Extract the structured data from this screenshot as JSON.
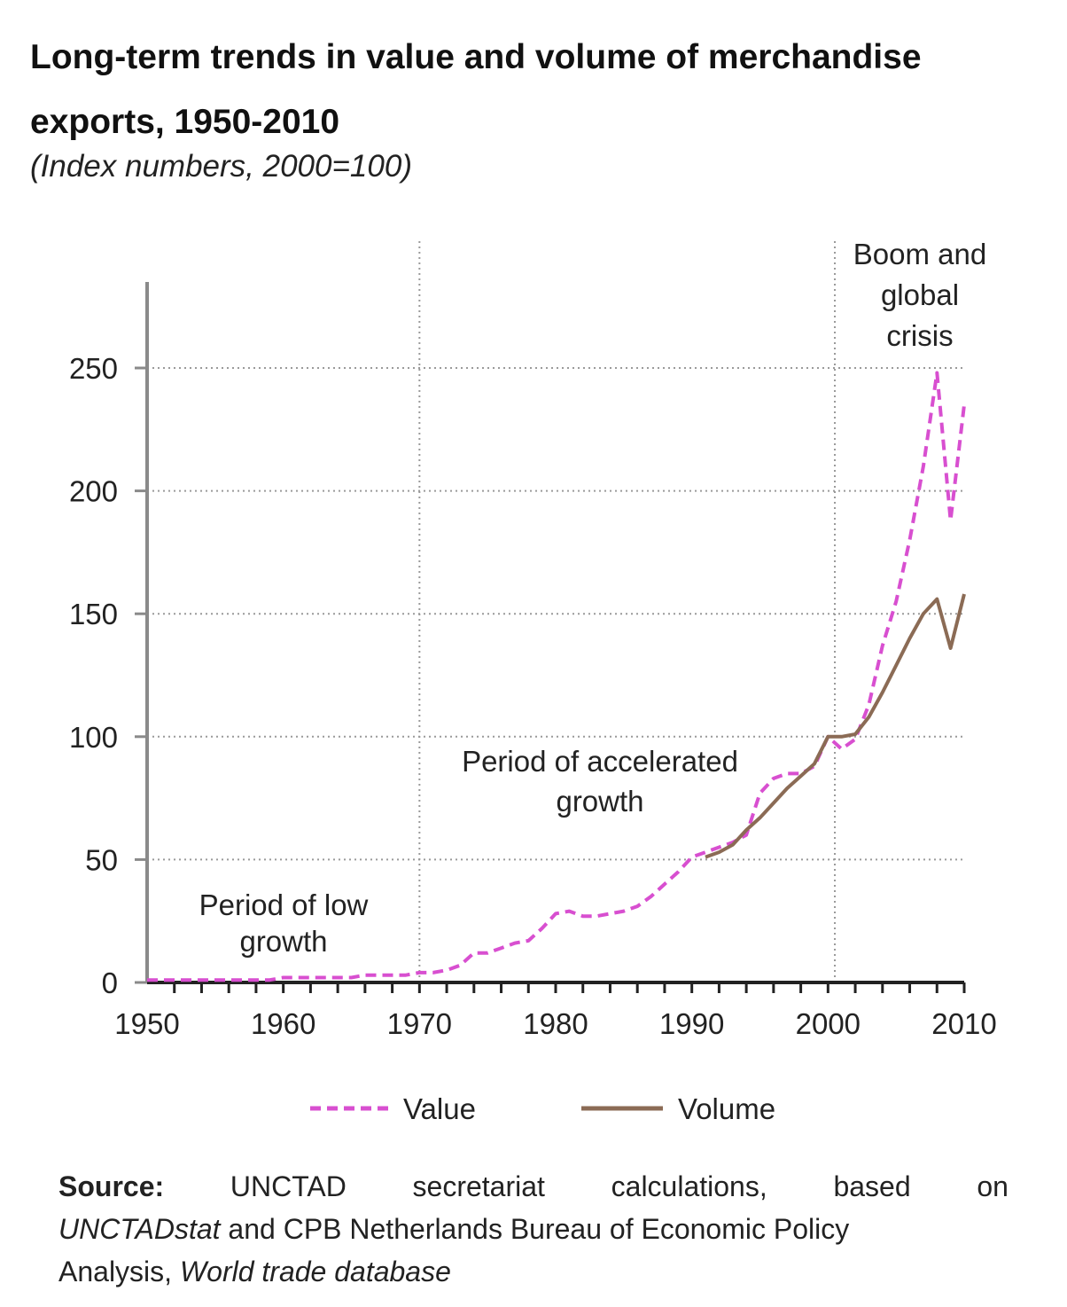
{
  "chart_data": {
    "type": "line",
    "title": "Long-term trends in value and volume of merchandise exports, 1950-2010",
    "subtitle": "(Index numbers, 2000=100)",
    "xlim": [
      1950,
      2010
    ],
    "ylim": [
      0,
      285
    ],
    "x_ticks": [
      1950,
      1960,
      1970,
      1980,
      1990,
      2000,
      2010
    ],
    "y_ticks": [
      0,
      50,
      100,
      150,
      200,
      250
    ],
    "grid": "horizontal dotted",
    "period_dividers": [
      1970,
      2000.5
    ],
    "legend_position": "bottom",
    "annotations": [
      {
        "text_lines": [
          "Period of low",
          "growth"
        ]
      },
      {
        "text_lines": [
          "Period of accelerated",
          "growth"
        ]
      },
      {
        "text_lines": [
          "Boom and",
          "global",
          "crisis"
        ]
      }
    ],
    "series": [
      {
        "name": "Value",
        "style": "dashed",
        "color": "#d84fd0",
        "x": [
          1950,
          1951,
          1952,
          1953,
          1954,
          1955,
          1956,
          1957,
          1958,
          1959,
          1960,
          1961,
          1962,
          1963,
          1964,
          1965,
          1966,
          1967,
          1968,
          1969,
          1970,
          1971,
          1972,
          1973,
          1974,
          1975,
          1976,
          1977,
          1978,
          1979,
          1980,
          1981,
          1982,
          1983,
          1984,
          1985,
          1986,
          1987,
          1988,
          1989,
          1990,
          1991,
          1992,
          1993,
          1994,
          1995,
          1996,
          1997,
          1998,
          1999,
          2000,
          2001,
          2002,
          2003,
          2004,
          2005,
          2006,
          2007,
          2008,
          2009,
          2010
        ],
        "y": [
          1,
          1,
          1,
          1,
          1,
          1,
          1,
          1,
          1,
          1,
          2,
          2,
          2,
          2,
          2,
          2,
          3,
          3,
          3,
          3,
          4,
          4,
          5,
          7,
          12,
          12,
          14,
          16,
          17,
          22,
          28,
          29,
          27,
          27,
          28,
          29,
          31,
          35,
          40,
          45,
          51,
          53,
          55,
          57,
          60,
          77,
          83,
          85,
          85,
          88,
          100,
          95,
          99,
          113,
          137,
          155,
          180,
          210,
          248,
          188,
          235
        ]
      },
      {
        "name": "Volume",
        "style": "solid",
        "color": "#8b6b55",
        "x": [
          1991,
          1992,
          1993,
          1994,
          1995,
          1996,
          1997,
          1998,
          1999,
          2000,
          2001,
          2002,
          2003,
          2004,
          2005,
          2006,
          2007,
          2008,
          2009,
          2010
        ],
        "y": [
          51,
          53,
          56,
          62,
          67,
          73,
          79,
          84,
          89,
          100,
          100,
          101,
          108,
          118,
          129,
          140,
          150,
          156,
          136,
          158
        ]
      }
    ]
  },
  "source": {
    "label": "Source:",
    "words1": [
      "UNCTAD",
      "secretariat",
      "calculations,",
      "based",
      "on"
    ],
    "line2_italic": "UNCTADstat",
    "line2_rest": " and CPB Netherlands Bureau of Economic Policy",
    "line3_plain": "Analysis, ",
    "line3_italic": "World trade database"
  }
}
